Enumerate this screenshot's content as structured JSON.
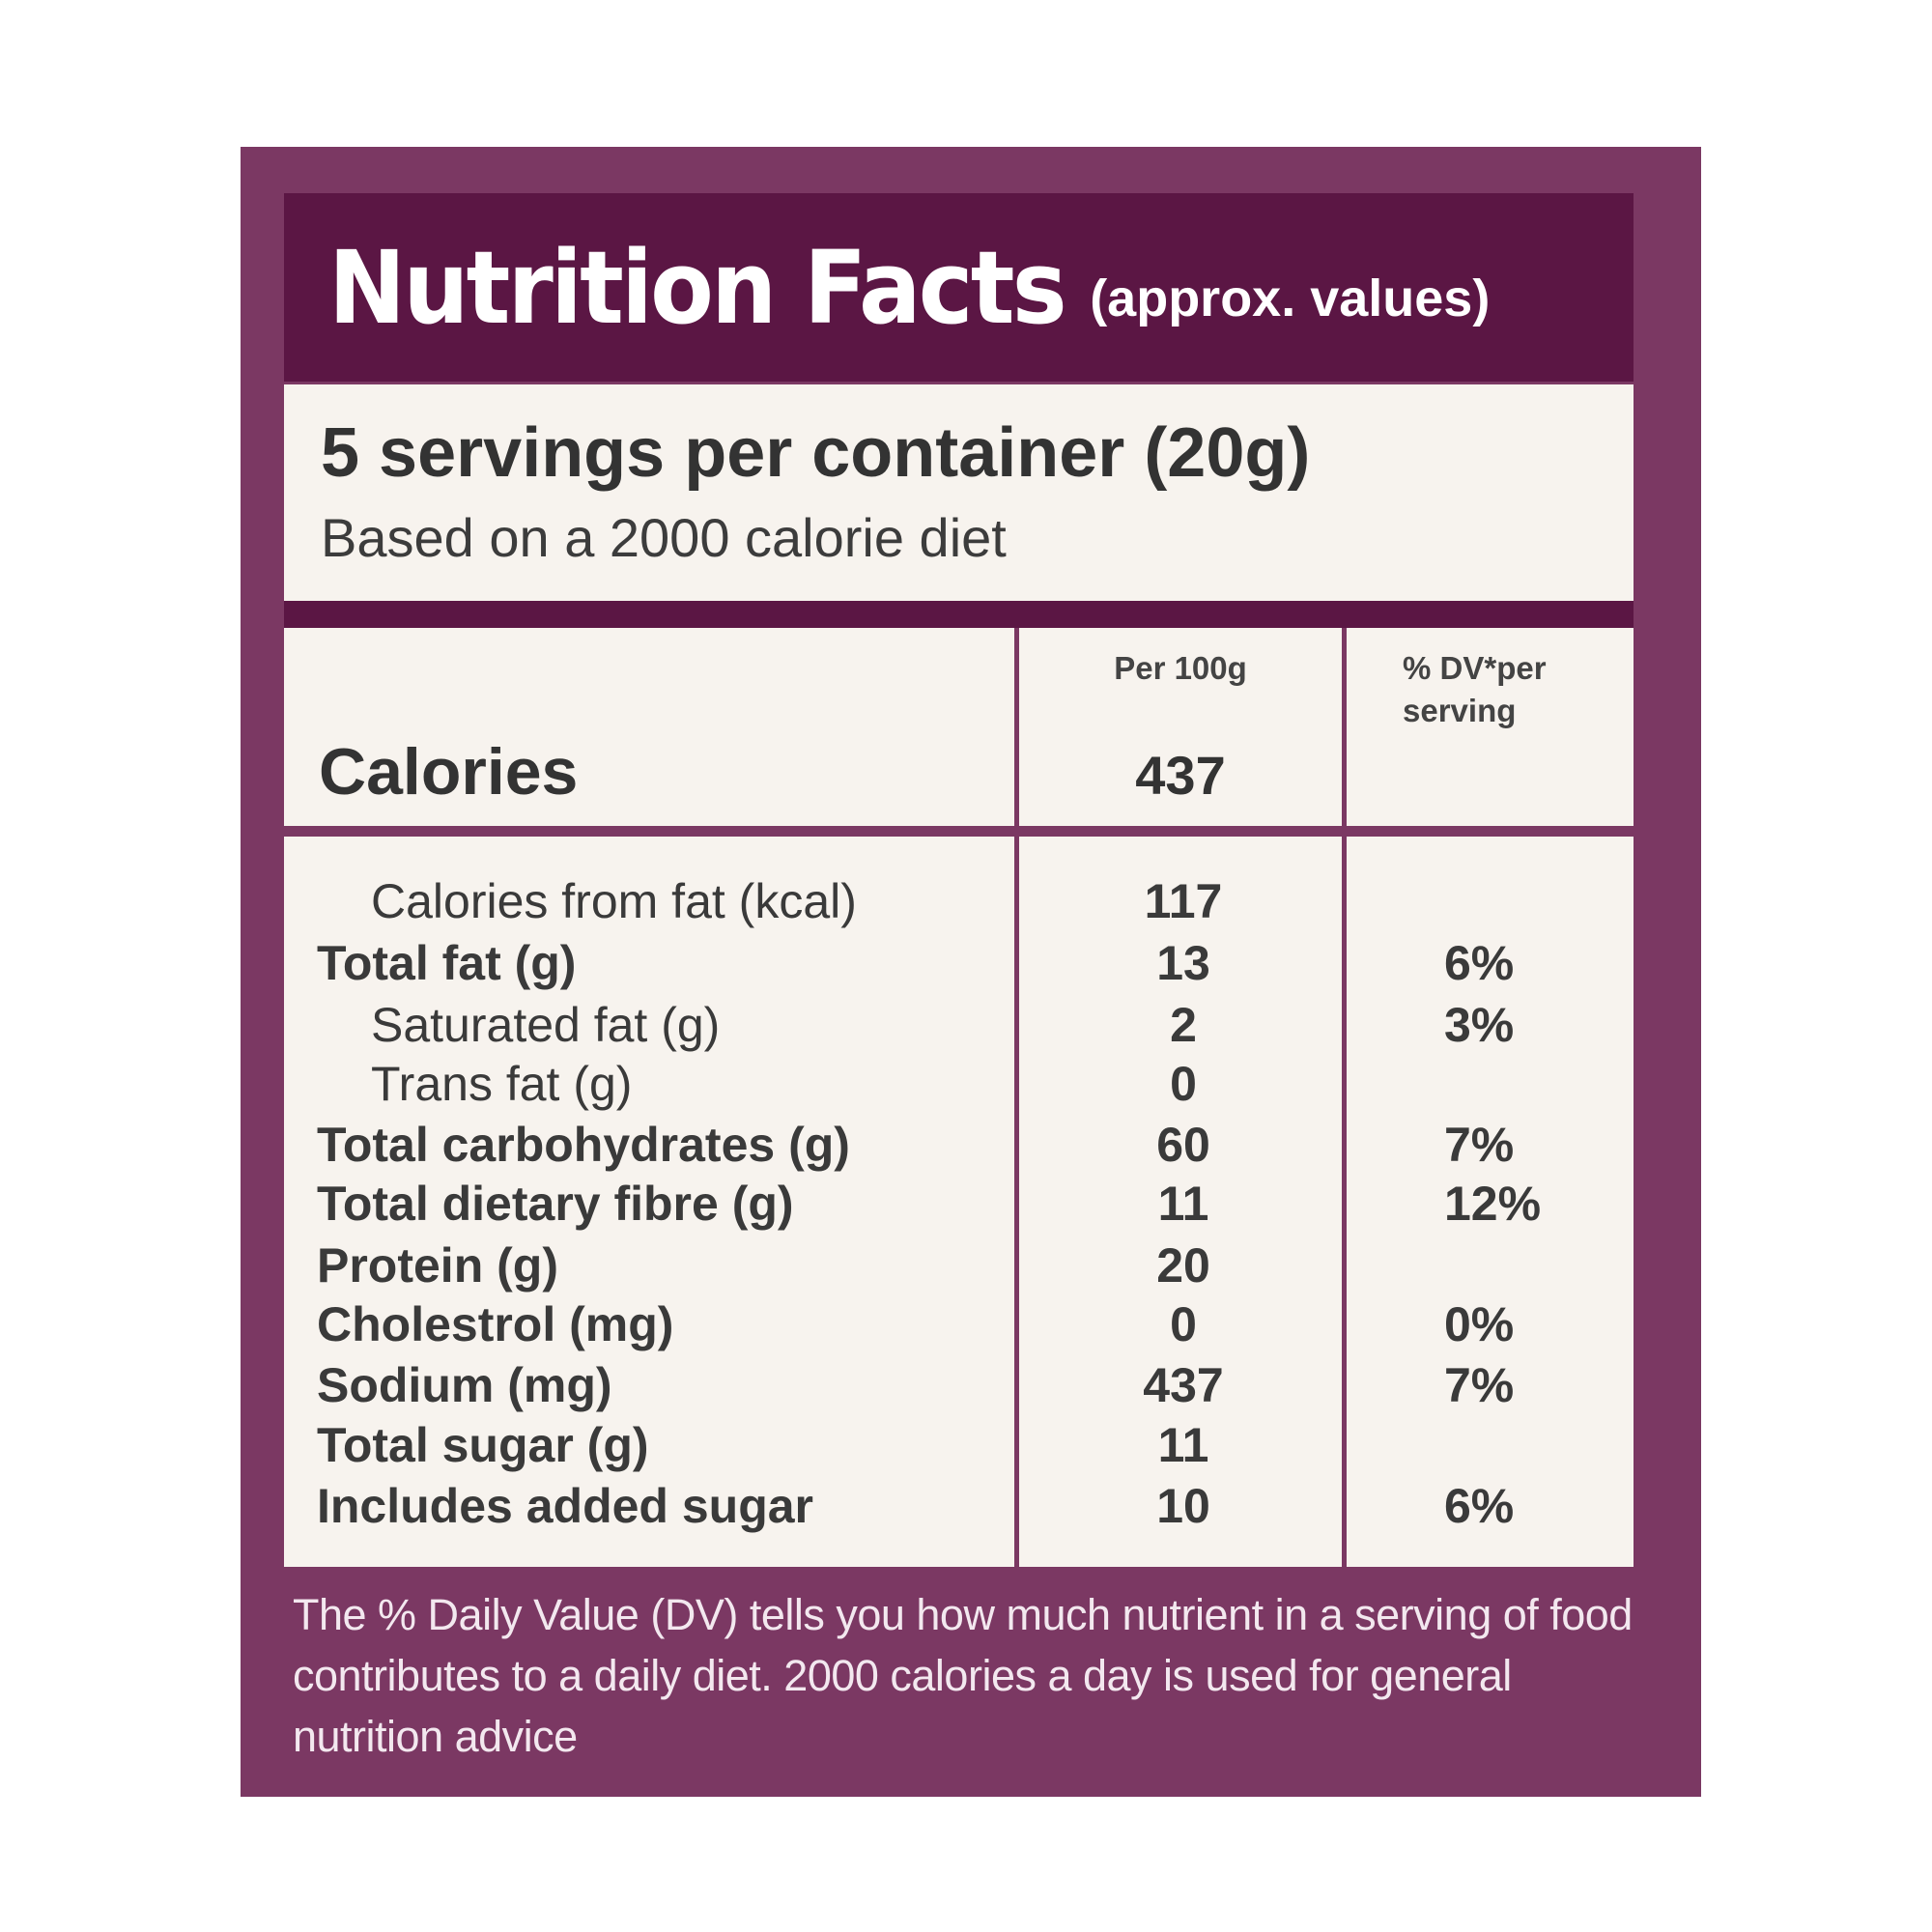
{
  "header": {
    "title": "Nutrition Facts",
    "subtitle": "(approx. values)"
  },
  "serving": {
    "main": "5 servings per container (20g)",
    "diet": "Based on a 2000 calorie diet"
  },
  "columns": {
    "per100g": "Per 100g",
    "dv_line1": "% DV*per",
    "dv_line2": "serving"
  },
  "calories": {
    "label": "Calories",
    "value": "437"
  },
  "nutrients": [
    {
      "name": "Calories from fat (kcal)",
      "value": "117",
      "dv": "",
      "indent": true
    },
    {
      "name": "Total fat (g)",
      "value": "13",
      "dv": "6%",
      "indent": false
    },
    {
      "name": "Saturated fat (g)",
      "value": "2",
      "dv": "3%",
      "indent": true
    },
    {
      "name": "Trans fat (g)",
      "value": "0",
      "dv": "",
      "indent": true
    },
    {
      "name": "Total carbohydrates (g)",
      "value": "60",
      "dv": "7%",
      "indent": false
    },
    {
      "name": "Total dietary fibre (g)",
      "value": "11",
      "dv": "12%",
      "indent": false
    },
    {
      "name": "Protein (g)",
      "value": "20",
      "dv": "",
      "indent": false
    },
    {
      "name": "Cholestrol (mg)",
      "value": "0",
      "dv": "0%",
      "indent": false
    },
    {
      "name": "Sodium (mg)",
      "value": "437",
      "dv": "7%",
      "indent": false
    },
    {
      "name": "Total sugar (g)",
      "value": "11",
      "dv": "",
      "indent": false
    },
    {
      "name": "Includes added sugar",
      "value": "10",
      "dv": "6%",
      "indent": false
    }
  ],
  "footnote": "The % Daily Value (DV) tells you how much nutrient in a serving of food contributes to a daily diet. 2000 calories a day is used for general nutrition advice",
  "colors": {
    "panel": "#7b3863",
    "header": "#5b1644",
    "cell": "#f7f3ee"
  }
}
